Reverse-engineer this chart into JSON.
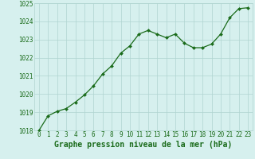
{
  "x": [
    0,
    1,
    2,
    3,
    4,
    5,
    6,
    7,
    8,
    9,
    10,
    11,
    12,
    13,
    14,
    15,
    16,
    17,
    18,
    19,
    20,
    21,
    22,
    23
  ],
  "y": [
    1018.0,
    1018.8,
    1019.05,
    1019.2,
    1019.55,
    1019.95,
    1020.45,
    1021.1,
    1021.55,
    1022.25,
    1022.65,
    1023.3,
    1023.5,
    1023.3,
    1023.1,
    1023.3,
    1022.8,
    1022.55,
    1022.55,
    1022.75,
    1023.3,
    1024.2,
    1024.7,
    1024.75
  ],
  "line_color": "#1a6b1a",
  "marker_color": "#1a6b1a",
  "bg_color": "#d6f0ee",
  "grid_color": "#b0d4d0",
  "xlabel": "Graphe pression niveau de la mer (hPa)",
  "xlabel_color": "#1a6b1a",
  "tick_color": "#1a6b1a",
  "ylim": [
    1018,
    1025
  ],
  "xlim_min": -0.5,
  "xlim_max": 23.5,
  "yticks": [
    1018,
    1019,
    1020,
    1021,
    1022,
    1023,
    1024,
    1025
  ],
  "xticks": [
    0,
    1,
    2,
    3,
    4,
    5,
    6,
    7,
    8,
    9,
    10,
    11,
    12,
    13,
    14,
    15,
    16,
    17,
    18,
    19,
    20,
    21,
    22,
    23
  ],
  "xlabel_fontsize": 7,
  "tick_fontsize": 5.5
}
